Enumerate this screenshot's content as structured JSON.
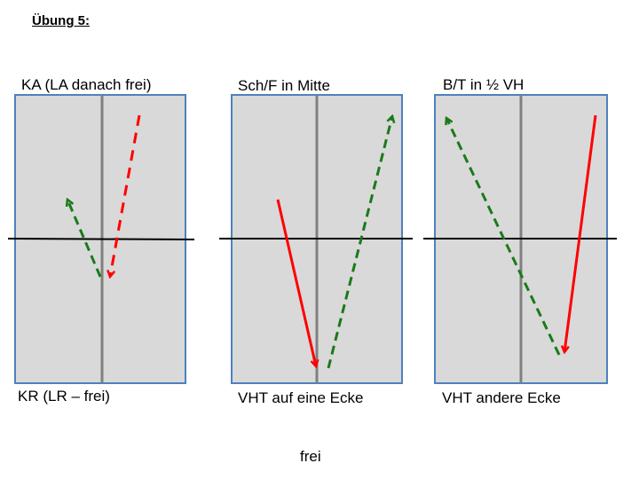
{
  "title": "Übung 5:",
  "panels": [
    {
      "top_label": "KA (LA danach frei)",
      "bottom_label": "KR (LR – frei)"
    },
    {
      "top_label": "Sch/F in Mitte",
      "bottom_label": "VHT auf eine Ecke"
    },
    {
      "top_label": "B/T in ½ VH",
      "bottom_label": "VHT andere Ecke"
    }
  ],
  "footer": "frei",
  "colors": {
    "panel_fill": "#d9d9d9",
    "panel_border": "#4f81bd",
    "center_line": "#808080",
    "red_arrow": "#ff0000",
    "green_arrow": "#1a7a1a"
  }
}
